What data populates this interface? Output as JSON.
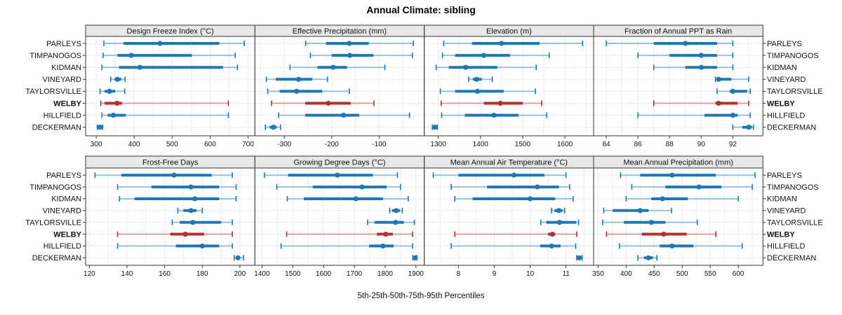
{
  "title": "Annual Climate: sibling",
  "xlabel": "5th-25th-50th-75th-95th Percentiles",
  "colors": {
    "series_blue": "#1f77b4",
    "series_red": "#b3322c",
    "header_bg": "#e8e8e8",
    "panel_border": "#333333",
    "grid": "#c9c9c9",
    "text": "#111111"
  },
  "stations": [
    "PARLEYS",
    "TIMPANOGOS",
    "KIDMAN",
    "VINEYARD",
    "TAYLORSVILLE",
    "WELBY",
    "HILLFIELD",
    "DECKERMAN"
  ],
  "highlight_station": "WELBY",
  "chart_data": {
    "type": "trellis_percentile_dotplot",
    "percentile_labels": [
      5,
      25,
      50,
      75,
      95
    ],
    "legend": "5th-25th-50th-75th-95th Percentiles",
    "grid": "dotted",
    "panels": [
      {
        "title": "Design Freeze Index (°C)",
        "row": 0,
        "col": 0,
        "xlim": [
          272,
          718
        ],
        "ticks": [
          300,
          400,
          500,
          600,
          700
        ],
        "minor_step": 50,
        "percentiles": [
          [
            320,
            372,
            468,
            624,
            690
          ],
          [
            318,
            356,
            392,
            552,
            666
          ],
          [
            315,
            360,
            415,
            634,
            672
          ],
          [
            338,
            348,
            356,
            366,
            376
          ],
          [
            310,
            322,
            335,
            350,
            375
          ],
          [
            312,
            322,
            355,
            368,
            648
          ],
          [
            315,
            330,
            345,
            378,
            648
          ],
          [
            303,
            306,
            310,
            313,
            317
          ]
        ]
      },
      {
        "title": "Effective Precipitation (mm)",
        "row": 0,
        "col": 1,
        "xlim": [
          -362,
          -5
        ],
        "ticks": [
          -300,
          -200,
          -100
        ],
        "minor_step": 50,
        "percentiles": [
          [
            -255,
            -212,
            -163,
            -122,
            -28
          ],
          [
            -245,
            -200,
            -162,
            -112,
            -30
          ],
          [
            -288,
            -230,
            -197,
            -168,
            -88
          ],
          [
            -338,
            -318,
            -270,
            -241,
            -209
          ],
          [
            -335,
            -310,
            -274,
            -220,
            -163
          ],
          [
            -327,
            -256,
            -207,
            -160,
            -111
          ],
          [
            -312,
            -256,
            -175,
            -142,
            -36
          ],
          [
            -340,
            -331,
            -323,
            -316,
            -308
          ]
        ]
      },
      {
        "title": "Elevation (m)",
        "row": 0,
        "col": 2,
        "xlim": [
          1267,
          1668
        ],
        "ticks": [
          1300,
          1400,
          1500,
          1600
        ],
        "minor_step": 50,
        "percentiles": [
          [
            1313,
            1380,
            1450,
            1540,
            1642
          ],
          [
            1310,
            1340,
            1408,
            1470,
            1563
          ],
          [
            1295,
            1325,
            1365,
            1440,
            1532
          ],
          [
            1372,
            1382,
            1391,
            1403,
            1428
          ],
          [
            1305,
            1340,
            1393,
            1455,
            1530
          ],
          [
            1307,
            1408,
            1447,
            1500,
            1545
          ],
          [
            1308,
            1363,
            1432,
            1490,
            1557
          ],
          [
            1286,
            1289,
            1292,
            1295,
            1298
          ]
        ]
      },
      {
        "title": "Fraction of Annual PPT as Rain",
        "row": 0,
        "col": 3,
        "xlim": [
          83.2,
          93.9
        ],
        "ticks": [
          84,
          86,
          88,
          90,
          92
        ],
        "minor_step": 1,
        "percentiles": [
          [
            84,
            87,
            89,
            91,
            92
          ],
          [
            86,
            88,
            90,
            91,
            92
          ],
          [
            87,
            89,
            90,
            91,
            92
          ],
          [
            90.9,
            91.0,
            91.1,
            91.9,
            93.0
          ],
          [
            91.0,
            91.8,
            92.0,
            92.9,
            93.1
          ],
          [
            87,
            90.9,
            91.1,
            92.3,
            93.0
          ],
          [
            86,
            90.2,
            92.0,
            92.3,
            93.1
          ],
          [
            92.0,
            92.6,
            93.0,
            93.2,
            93.3
          ]
        ]
      },
      {
        "title": "Frost-Free Days",
        "row": 1,
        "col": 0,
        "xlim": [
          118,
          208
        ],
        "ticks": [
          120,
          140,
          160,
          180,
          200
        ],
        "minor_step": 10,
        "percentiles": [
          [
            123,
            137,
            165,
            185,
            196
          ],
          [
            135,
            153,
            174,
            189,
            198
          ],
          [
            136,
            144,
            176,
            189,
            198
          ],
          [
            167,
            170,
            174,
            177,
            180
          ],
          [
            164,
            168,
            175,
            190,
            196
          ],
          [
            135,
            163,
            171,
            181,
            196
          ],
          [
            135,
            166,
            180,
            189,
            196
          ],
          [
            197,
            198,
            199,
            200,
            202
          ]
        ]
      },
      {
        "title": "Growing Degree Days (°C)",
        "row": 1,
        "col": 1,
        "xlim": [
          1377,
          1927
        ],
        "ticks": [
          1400,
          1500,
          1600,
          1700,
          1800,
          1900
        ],
        "minor_step": 50,
        "percentiles": [
          [
            1408,
            1485,
            1645,
            1760,
            1840
          ],
          [
            1448,
            1565,
            1725,
            1805,
            1850
          ],
          [
            1482,
            1536,
            1705,
            1793,
            1875
          ],
          [
            1815,
            1823,
            1836,
            1848,
            1856
          ],
          [
            1743,
            1766,
            1834,
            1861,
            1895
          ],
          [
            1480,
            1773,
            1802,
            1825,
            1889
          ],
          [
            1462,
            1748,
            1793,
            1828,
            1889
          ],
          [
            1890,
            1894,
            1897,
            1900,
            1903
          ]
        ]
      },
      {
        "title": "Mean Annual Air Temperature (°C)",
        "row": 1,
        "col": 2,
        "xlim": [
          7.05,
          11.77
        ],
        "ticks": [
          8,
          9,
          10,
          11
        ],
        "minor_step": 0.5,
        "percentiles": [
          [
            7.3,
            8.0,
            9.55,
            10.4,
            11.0
          ],
          [
            7.8,
            8.8,
            10.2,
            10.8,
            11.1
          ],
          [
            7.9,
            8.4,
            10.0,
            10.7,
            11.2
          ],
          [
            10.6,
            10.68,
            10.8,
            10.9,
            10.96
          ],
          [
            10.3,
            10.45,
            10.82,
            11.28,
            11.35
          ],
          [
            7.9,
            10.5,
            10.62,
            10.7,
            11.3
          ],
          [
            7.8,
            10.28,
            10.6,
            10.85,
            11.27
          ],
          [
            11.3,
            11.33,
            11.37,
            11.41,
            11.45
          ]
        ]
      },
      {
        "title": "Mean Annual Precipitation (mm)",
        "row": 1,
        "col": 3,
        "xlim": [
          342,
          644
        ],
        "ticks": [
          350,
          400,
          450,
          500,
          550,
          600
        ],
        "minor_step": 25,
        "percentiles": [
          [
            390,
            425,
            482,
            560,
            630
          ],
          [
            410,
            470,
            530,
            570,
            625
          ],
          [
            400,
            445,
            465,
            510,
            600
          ],
          [
            360,
            376,
            425,
            440,
            481
          ],
          [
            358,
            396,
            445,
            470,
            527
          ],
          [
            365,
            428,
            467,
            508,
            560
          ],
          [
            388,
            460,
            482,
            520,
            607
          ],
          [
            421,
            432,
            440,
            448,
            455
          ]
        ]
      }
    ]
  }
}
